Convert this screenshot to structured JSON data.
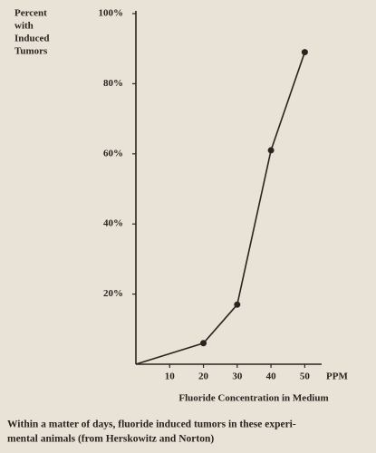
{
  "chart_data": {
    "type": "line",
    "y_label": [
      "Percent",
      "with",
      "Induced",
      "Tumors"
    ],
    "x_label": "Fluoride Concentration in Medium",
    "x_unit": "PPM",
    "caption": [
      "Within a matter of days, fluoride induced tumors in these experi-",
      "mental animals (from Herskowitz and Norton)"
    ],
    "x": [
      0,
      20,
      30,
      40,
      50
    ],
    "values": [
      0,
      6,
      17,
      61,
      89
    ],
    "color": "#2a2420",
    "xlim": [
      0,
      55
    ],
    "ylim": [
      0,
      100
    ],
    "xticks": [
      10,
      20,
      30,
      40,
      50
    ],
    "yticks": [
      {
        "value": 20,
        "label": "20%"
      },
      {
        "value": 40,
        "label": "40%"
      },
      {
        "value": 60,
        "label": "60%"
      },
      {
        "value": 80,
        "label": "80%"
      },
      {
        "value": 100,
        "label": "100%"
      }
    ]
  }
}
